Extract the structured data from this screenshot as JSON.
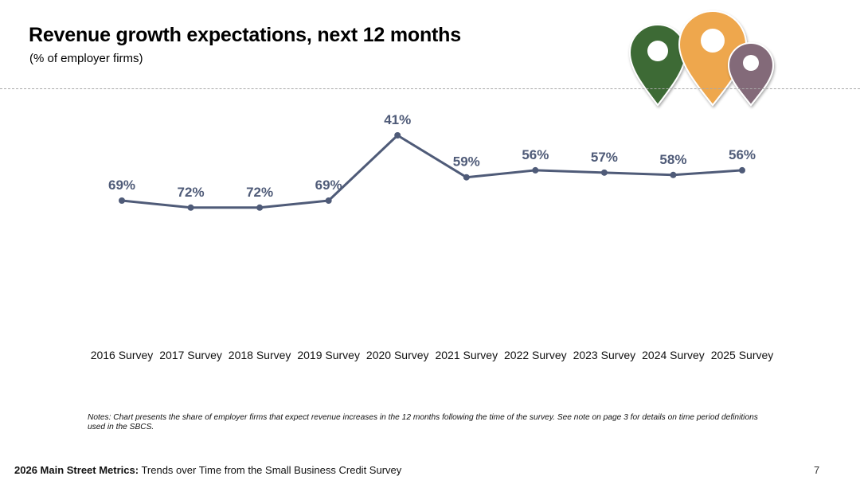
{
  "header": {
    "title": "Revenue growth expectations, next 12 months",
    "subtitle": "(% of employer firms)"
  },
  "chart_data": {
    "type": "line",
    "title": "Revenue growth expectations, next 12 months",
    "subtitle": "(% of employer firms)",
    "categories": [
      "2016 Survey",
      "2017 Survey",
      "2018 Survey",
      "2019 Survey",
      "2020 Survey",
      "2021 Survey",
      "2022 Survey",
      "2023 Survey",
      "2024 Survey",
      "2025 Survey"
    ],
    "values": [
      69,
      72,
      72,
      69,
      41,
      59,
      56,
      57,
      58,
      56
    ],
    "data_labels": [
      "69%",
      "72%",
      "72%",
      "69%",
      "41%",
      "59%",
      "56%",
      "57%",
      "58%",
      "56%"
    ],
    "xlabel": "",
    "ylabel": "",
    "ylim": [
      0,
      100
    ],
    "grid": false,
    "line_color": "#4f5b78"
  },
  "notes": "Notes: Chart presents the share of employer firms that expect revenue increases in the 12 months following the time of the survey. See note on page 3 for details on time period definitions used in the SBCS.",
  "footer": {
    "bold": "2026 Main Street Metrics:",
    "text": " Trends over Time from the Small Business Credit Survey",
    "page": "7"
  },
  "colors": {
    "pin_green": "#3c6b35",
    "pin_orange": "#eea74e",
    "pin_purple": "#836b79",
    "divider": "#a9a9a9"
  }
}
